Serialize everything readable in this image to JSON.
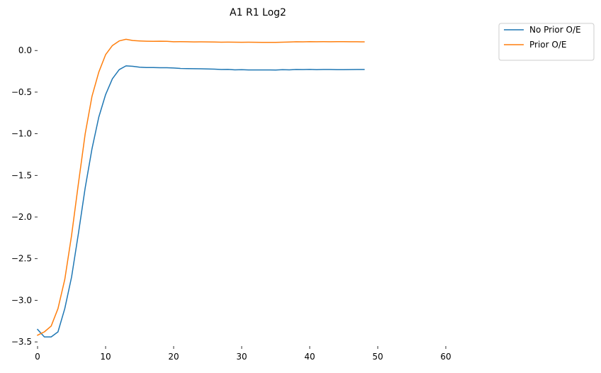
{
  "chart_data": {
    "type": "line",
    "title": "A1 R1 Log2",
    "xlabel": "",
    "ylabel": "",
    "xlim": [
      0,
      70
    ],
    "ylim": [
      -3.55,
      0.3
    ],
    "xticks": [
      0,
      10,
      20,
      30,
      40,
      50,
      60
    ],
    "yticks": [
      0.0,
      -0.5,
      -1.0,
      -1.5,
      -2.0,
      -2.5,
      -3.0,
      -3.5
    ],
    "xtick_labels": [
      "0",
      "10",
      "20",
      "30",
      "40",
      "50",
      "60"
    ],
    "ytick_labels": [
      "0.0",
      "−0.5",
      "−1.0",
      "−1.5",
      "−2.0",
      "−2.5",
      "−3.0",
      "−3.5"
    ],
    "grid": false,
    "legend_position": "top-right (outside plot)",
    "x": [
      0,
      1,
      2,
      3,
      4,
      5,
      6,
      7,
      8,
      9,
      10,
      11,
      12,
      13,
      14,
      15,
      16,
      17,
      18,
      19,
      20,
      21,
      22,
      23,
      24,
      25,
      26,
      27,
      28,
      29,
      30,
      31,
      32,
      33,
      34,
      35,
      36,
      37,
      38,
      39,
      40,
      41,
      42,
      43,
      44,
      45,
      46,
      47,
      48
    ],
    "series": [
      {
        "name": "No Prior O/E",
        "color": "#1f77b4",
        "values": [
          -3.35,
          -3.44,
          -3.44,
          -3.38,
          -3.1,
          -2.72,
          -2.2,
          -1.65,
          -1.18,
          -0.8,
          -0.53,
          -0.34,
          -0.23,
          -0.185,
          -0.19,
          -0.2,
          -0.205,
          -0.205,
          -0.207,
          -0.207,
          -0.21,
          -0.215,
          -0.218,
          -0.219,
          -0.22,
          -0.222,
          -0.224,
          -0.228,
          -0.227,
          -0.232,
          -0.231,
          -0.233,
          -0.233,
          -0.233,
          -0.233,
          -0.234,
          -0.231,
          -0.232,
          -0.228,
          -0.229,
          -0.227,
          -0.23,
          -0.228,
          -0.228,
          -0.23,
          -0.231,
          -0.229,
          -0.228,
          -0.228
        ]
      },
      {
        "name": "Prior O/E",
        "color": "#ff7f0e",
        "values": [
          -3.42,
          -3.38,
          -3.31,
          -3.1,
          -2.75,
          -2.22,
          -1.6,
          -1.0,
          -0.55,
          -0.26,
          -0.05,
          0.06,
          0.115,
          0.135,
          0.12,
          0.115,
          0.112,
          0.11,
          0.112,
          0.11,
          0.105,
          0.107,
          0.105,
          0.103,
          0.104,
          0.103,
          0.102,
          0.1,
          0.101,
          0.1,
          0.099,
          0.1,
          0.099,
          0.098,
          0.098,
          0.098,
          0.1,
          0.102,
          0.105,
          0.104,
          0.107,
          0.105,
          0.106,
          0.105,
          0.107,
          0.107,
          0.105,
          0.105,
          0.104
        ]
      }
    ]
  }
}
